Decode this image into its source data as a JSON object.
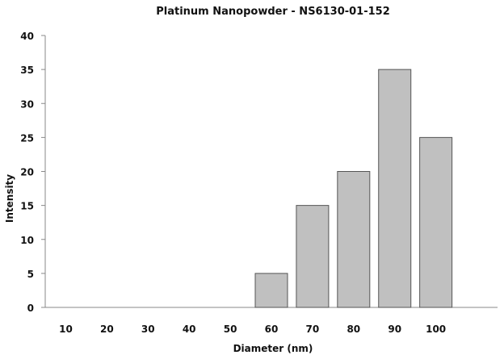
{
  "chart_data": {
    "type": "bar",
    "title": "Platinum Nanopowder - NS6130-01-152",
    "xlabel": "Diameter (nm)",
    "ylabel": "Intensity",
    "categories": [
      "10",
      "20",
      "30",
      "40",
      "50",
      "60",
      "70",
      "80",
      "90",
      "100"
    ],
    "values": [
      0,
      0,
      0,
      0,
      0,
      5,
      15,
      20,
      35,
      25
    ],
    "ylim": [
      0,
      40
    ],
    "yticks": [
      0,
      5,
      10,
      15,
      20,
      25,
      30,
      35,
      40
    ],
    "grid": false,
    "legend": "none",
    "bar_color": "#c0c0c0",
    "bar_edge_color": "#555555"
  }
}
